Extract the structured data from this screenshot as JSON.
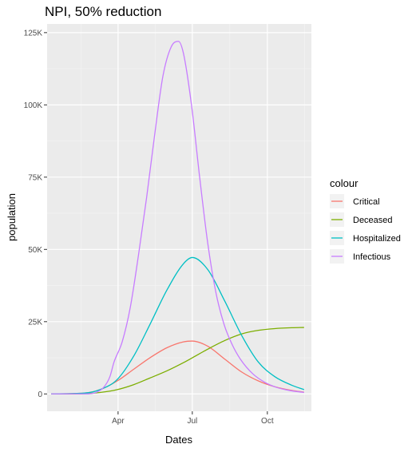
{
  "chart_data": {
    "type": "line",
    "title": "NPI, 50% reduction",
    "xlabel": "Dates",
    "ylabel": "population",
    "x_tick_labels": [
      "Apr",
      "Jul",
      "Oct"
    ],
    "x_tick_dates": [
      "2020-04-01",
      "2020-07-01",
      "2020-10-01"
    ],
    "xlim": [
      "2020-01-05",
      "2020-11-24"
    ],
    "y_ticks": [
      0,
      25000,
      50000,
      75000,
      100000,
      125000
    ],
    "y_tick_labels": [
      "0",
      "25K",
      "50K",
      "75K",
      "100K",
      "125K"
    ],
    "ylim": [
      -6000,
      128000
    ],
    "grid": true,
    "panel_background": "#ebebeb",
    "legend": {
      "title": "colour",
      "position": "right"
    },
    "series": [
      {
        "name": "Critical",
        "color": "#F8766D",
        "points": [
          [
            "2020-01-10",
            0
          ],
          [
            "2020-02-20",
            300
          ],
          [
            "2020-03-10",
            1500
          ],
          [
            "2020-03-31",
            4500
          ],
          [
            "2020-04-20",
            8500
          ],
          [
            "2020-05-10",
            12500
          ],
          [
            "2020-05-31",
            16000
          ],
          [
            "2020-06-20",
            18000
          ],
          [
            "2020-07-01",
            18300
          ],
          [
            "2020-07-20",
            16500
          ],
          [
            "2020-08-10",
            12000
          ],
          [
            "2020-08-31",
            7500
          ],
          [
            "2020-09-20",
            4500
          ],
          [
            "2020-10-10",
            2500
          ],
          [
            "2020-10-31",
            1200
          ],
          [
            "2020-11-15",
            600
          ]
        ]
      },
      {
        "name": "Deceased",
        "color": "#7CAE00",
        "points": [
          [
            "2020-01-10",
            0
          ],
          [
            "2020-02-20",
            100
          ],
          [
            "2020-03-10",
            500
          ],
          [
            "2020-03-31",
            1500
          ],
          [
            "2020-04-20",
            3200
          ],
          [
            "2020-05-10",
            5500
          ],
          [
            "2020-05-31",
            8000
          ],
          [
            "2020-06-20",
            10800
          ],
          [
            "2020-07-01",
            12500
          ],
          [
            "2020-07-20",
            15500
          ],
          [
            "2020-08-10",
            18500
          ],
          [
            "2020-08-31",
            20800
          ],
          [
            "2020-09-20",
            22000
          ],
          [
            "2020-10-10",
            22600
          ],
          [
            "2020-10-31",
            22900
          ],
          [
            "2020-11-15",
            23000
          ]
        ]
      },
      {
        "name": "Hospitalized",
        "color": "#00BFC4",
        "points": [
          [
            "2020-01-10",
            0
          ],
          [
            "2020-02-20",
            300
          ],
          [
            "2020-03-10",
            1500
          ],
          [
            "2020-03-31",
            5000
          ],
          [
            "2020-04-20",
            13000
          ],
          [
            "2020-05-10",
            24000
          ],
          [
            "2020-05-31",
            36000
          ],
          [
            "2020-06-20",
            45000
          ],
          [
            "2020-07-01",
            47200
          ],
          [
            "2020-07-20",
            43000
          ],
          [
            "2020-08-10",
            32000
          ],
          [
            "2020-08-31",
            20000
          ],
          [
            "2020-09-20",
            11000
          ],
          [
            "2020-10-10",
            6000
          ],
          [
            "2020-10-31",
            3000
          ],
          [
            "2020-11-15",
            1500
          ]
        ]
      },
      {
        "name": "Infectious",
        "color": "#C77CFF",
        "points": [
          [
            "2020-01-10",
            0
          ],
          [
            "2020-02-20",
            0
          ],
          [
            "2020-03-05",
            500
          ],
          [
            "2020-03-15",
            2500
          ],
          [
            "2020-03-22",
            6000
          ],
          [
            "2020-03-27",
            11000
          ],
          [
            "2020-04-06",
            18000
          ],
          [
            "2020-04-16",
            30000
          ],
          [
            "2020-04-26",
            48000
          ],
          [
            "2020-05-06",
            68000
          ],
          [
            "2020-05-16",
            90000
          ],
          [
            "2020-05-26",
            110000
          ],
          [
            "2020-06-05",
            120000
          ],
          [
            "2020-06-14",
            122000
          ],
          [
            "2020-06-20",
            118000
          ],
          [
            "2020-06-30",
            100000
          ],
          [
            "2020-07-10",
            75000
          ],
          [
            "2020-07-20",
            52000
          ],
          [
            "2020-07-30",
            35000
          ],
          [
            "2020-08-09",
            24000
          ],
          [
            "2020-08-19",
            17000
          ],
          [
            "2020-08-29",
            12000
          ],
          [
            "2020-09-13",
            7000
          ],
          [
            "2020-09-28",
            4000
          ],
          [
            "2020-10-13",
            2200
          ],
          [
            "2020-10-28",
            1200
          ],
          [
            "2020-11-15",
            500
          ]
        ]
      }
    ]
  }
}
